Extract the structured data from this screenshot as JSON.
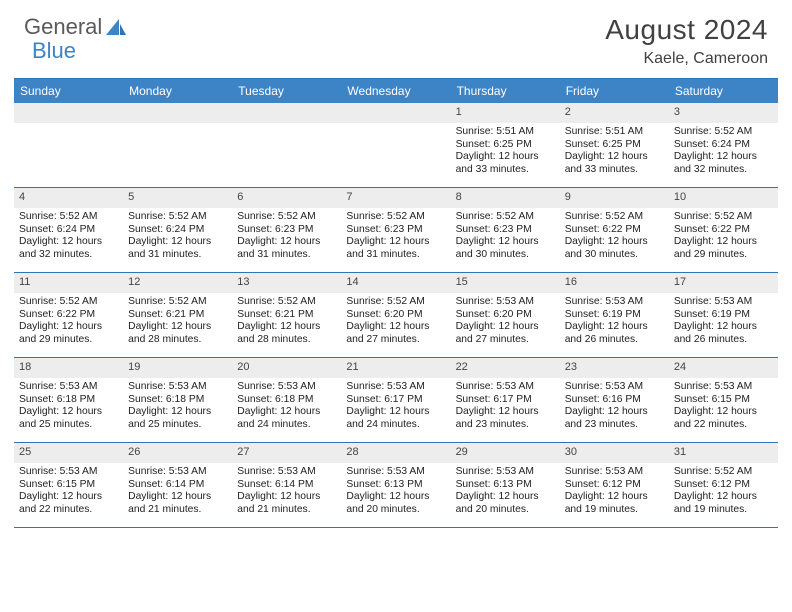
{
  "brand": {
    "name_part1": "General",
    "name_part2": "Blue"
  },
  "title": "August 2024",
  "location": "Kaele, Cameroon",
  "colors": {
    "header_bg": "#3d84c6",
    "divider": "#2e75b6",
    "daynum_bg": "#ededed",
    "text": "#222222",
    "title_text": "#414141"
  },
  "dow": [
    "Sunday",
    "Monday",
    "Tuesday",
    "Wednesday",
    "Thursday",
    "Friday",
    "Saturday"
  ],
  "weeks": [
    [
      {
        "n": "",
        "sr": "",
        "ss": "",
        "d1": "",
        "d2": ""
      },
      {
        "n": "",
        "sr": "",
        "ss": "",
        "d1": "",
        "d2": ""
      },
      {
        "n": "",
        "sr": "",
        "ss": "",
        "d1": "",
        "d2": ""
      },
      {
        "n": "",
        "sr": "",
        "ss": "",
        "d1": "",
        "d2": ""
      },
      {
        "n": "1",
        "sr": "Sunrise: 5:51 AM",
        "ss": "Sunset: 6:25 PM",
        "d1": "Daylight: 12 hours",
        "d2": "and 33 minutes."
      },
      {
        "n": "2",
        "sr": "Sunrise: 5:51 AM",
        "ss": "Sunset: 6:25 PM",
        "d1": "Daylight: 12 hours",
        "d2": "and 33 minutes."
      },
      {
        "n": "3",
        "sr": "Sunrise: 5:52 AM",
        "ss": "Sunset: 6:24 PM",
        "d1": "Daylight: 12 hours",
        "d2": "and 32 minutes."
      }
    ],
    [
      {
        "n": "4",
        "sr": "Sunrise: 5:52 AM",
        "ss": "Sunset: 6:24 PM",
        "d1": "Daylight: 12 hours",
        "d2": "and 32 minutes."
      },
      {
        "n": "5",
        "sr": "Sunrise: 5:52 AM",
        "ss": "Sunset: 6:24 PM",
        "d1": "Daylight: 12 hours",
        "d2": "and 31 minutes."
      },
      {
        "n": "6",
        "sr": "Sunrise: 5:52 AM",
        "ss": "Sunset: 6:23 PM",
        "d1": "Daylight: 12 hours",
        "d2": "and 31 minutes."
      },
      {
        "n": "7",
        "sr": "Sunrise: 5:52 AM",
        "ss": "Sunset: 6:23 PM",
        "d1": "Daylight: 12 hours",
        "d2": "and 31 minutes."
      },
      {
        "n": "8",
        "sr": "Sunrise: 5:52 AM",
        "ss": "Sunset: 6:23 PM",
        "d1": "Daylight: 12 hours",
        "d2": "and 30 minutes."
      },
      {
        "n": "9",
        "sr": "Sunrise: 5:52 AM",
        "ss": "Sunset: 6:22 PM",
        "d1": "Daylight: 12 hours",
        "d2": "and 30 minutes."
      },
      {
        "n": "10",
        "sr": "Sunrise: 5:52 AM",
        "ss": "Sunset: 6:22 PM",
        "d1": "Daylight: 12 hours",
        "d2": "and 29 minutes."
      }
    ],
    [
      {
        "n": "11",
        "sr": "Sunrise: 5:52 AM",
        "ss": "Sunset: 6:22 PM",
        "d1": "Daylight: 12 hours",
        "d2": "and 29 minutes."
      },
      {
        "n": "12",
        "sr": "Sunrise: 5:52 AM",
        "ss": "Sunset: 6:21 PM",
        "d1": "Daylight: 12 hours",
        "d2": "and 28 minutes."
      },
      {
        "n": "13",
        "sr": "Sunrise: 5:52 AM",
        "ss": "Sunset: 6:21 PM",
        "d1": "Daylight: 12 hours",
        "d2": "and 28 minutes."
      },
      {
        "n": "14",
        "sr": "Sunrise: 5:52 AM",
        "ss": "Sunset: 6:20 PM",
        "d1": "Daylight: 12 hours",
        "d2": "and 27 minutes."
      },
      {
        "n": "15",
        "sr": "Sunrise: 5:53 AM",
        "ss": "Sunset: 6:20 PM",
        "d1": "Daylight: 12 hours",
        "d2": "and 27 minutes."
      },
      {
        "n": "16",
        "sr": "Sunrise: 5:53 AM",
        "ss": "Sunset: 6:19 PM",
        "d1": "Daylight: 12 hours",
        "d2": "and 26 minutes."
      },
      {
        "n": "17",
        "sr": "Sunrise: 5:53 AM",
        "ss": "Sunset: 6:19 PM",
        "d1": "Daylight: 12 hours",
        "d2": "and 26 minutes."
      }
    ],
    [
      {
        "n": "18",
        "sr": "Sunrise: 5:53 AM",
        "ss": "Sunset: 6:18 PM",
        "d1": "Daylight: 12 hours",
        "d2": "and 25 minutes."
      },
      {
        "n": "19",
        "sr": "Sunrise: 5:53 AM",
        "ss": "Sunset: 6:18 PM",
        "d1": "Daylight: 12 hours",
        "d2": "and 25 minutes."
      },
      {
        "n": "20",
        "sr": "Sunrise: 5:53 AM",
        "ss": "Sunset: 6:18 PM",
        "d1": "Daylight: 12 hours",
        "d2": "and 24 minutes."
      },
      {
        "n": "21",
        "sr": "Sunrise: 5:53 AM",
        "ss": "Sunset: 6:17 PM",
        "d1": "Daylight: 12 hours",
        "d2": "and 24 minutes."
      },
      {
        "n": "22",
        "sr": "Sunrise: 5:53 AM",
        "ss": "Sunset: 6:17 PM",
        "d1": "Daylight: 12 hours",
        "d2": "and 23 minutes."
      },
      {
        "n": "23",
        "sr": "Sunrise: 5:53 AM",
        "ss": "Sunset: 6:16 PM",
        "d1": "Daylight: 12 hours",
        "d2": "and 23 minutes."
      },
      {
        "n": "24",
        "sr": "Sunrise: 5:53 AM",
        "ss": "Sunset: 6:15 PM",
        "d1": "Daylight: 12 hours",
        "d2": "and 22 minutes."
      }
    ],
    [
      {
        "n": "25",
        "sr": "Sunrise: 5:53 AM",
        "ss": "Sunset: 6:15 PM",
        "d1": "Daylight: 12 hours",
        "d2": "and 22 minutes."
      },
      {
        "n": "26",
        "sr": "Sunrise: 5:53 AM",
        "ss": "Sunset: 6:14 PM",
        "d1": "Daylight: 12 hours",
        "d2": "and 21 minutes."
      },
      {
        "n": "27",
        "sr": "Sunrise: 5:53 AM",
        "ss": "Sunset: 6:14 PM",
        "d1": "Daylight: 12 hours",
        "d2": "and 21 minutes."
      },
      {
        "n": "28",
        "sr": "Sunrise: 5:53 AM",
        "ss": "Sunset: 6:13 PM",
        "d1": "Daylight: 12 hours",
        "d2": "and 20 minutes."
      },
      {
        "n": "29",
        "sr": "Sunrise: 5:53 AM",
        "ss": "Sunset: 6:13 PM",
        "d1": "Daylight: 12 hours",
        "d2": "and 20 minutes."
      },
      {
        "n": "30",
        "sr": "Sunrise: 5:53 AM",
        "ss": "Sunset: 6:12 PM",
        "d1": "Daylight: 12 hours",
        "d2": "and 19 minutes."
      },
      {
        "n": "31",
        "sr": "Sunrise: 5:52 AM",
        "ss": "Sunset: 6:12 PM",
        "d1": "Daylight: 12 hours",
        "d2": "and 19 minutes."
      }
    ]
  ]
}
